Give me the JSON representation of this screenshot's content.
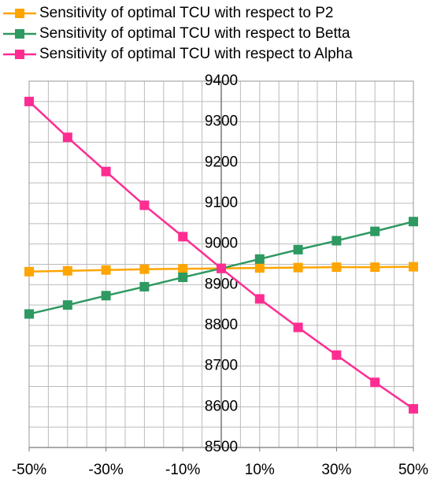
{
  "chart_data": {
    "type": "line",
    "x": [
      -50,
      -40,
      -30,
      -20,
      -10,
      0,
      10,
      20,
      30,
      40,
      50
    ],
    "xlim": [
      -50,
      50
    ],
    "xticks": [
      {
        "value": -50,
        "label": "-50%"
      },
      {
        "value": -30,
        "label": "-30%"
      },
      {
        "value": -10,
        "label": "-10%"
      },
      {
        "value": 10,
        "label": "10%"
      },
      {
        "value": 30,
        "label": "30%"
      },
      {
        "value": 50,
        "label": "50%"
      }
    ],
    "xgrid": [
      -50,
      -45,
      -40,
      -35,
      -30,
      -25,
      -20,
      -15,
      -10,
      -5,
      0,
      5,
      10,
      15,
      20,
      25,
      30,
      35,
      40,
      45,
      50
    ],
    "ylim": [
      8500,
      9400
    ],
    "yticks": [
      8500,
      8600,
      8700,
      8800,
      8900,
      9000,
      9100,
      9200,
      9300,
      9400
    ],
    "ygrid": [
      8500,
      8550,
      8600,
      8650,
      8700,
      8750,
      8800,
      8850,
      8900,
      8950,
      9000,
      9050,
      9100,
      9150,
      9200,
      9250,
      9300,
      9350,
      9400
    ],
    "grid": true,
    "legend": "top-left",
    "series": [
      {
        "name": "Sensitivity of optimal TCU with respect to P2",
        "color": "#ffa500",
        "values": [
          8932,
          8934,
          8936,
          8938,
          8939,
          8940,
          8941,
          8942,
          8943,
          8943,
          8944
        ]
      },
      {
        "name": "Sensitivity of optimal TCU with respect to Betta",
        "color": "#2e9960",
        "values": [
          8828,
          8850,
          8873,
          8895,
          8918,
          8940,
          8963,
          8986,
          9008,
          9031,
          9055
        ]
      },
      {
        "name": "Sensitivity of optimal TCU with respect to Alpha",
        "color": "#ff2c92",
        "values": [
          9350,
          9262,
          9178,
          9095,
          9018,
          8940,
          8865,
          8795,
          8727,
          8660,
          8595
        ]
      }
    ]
  }
}
